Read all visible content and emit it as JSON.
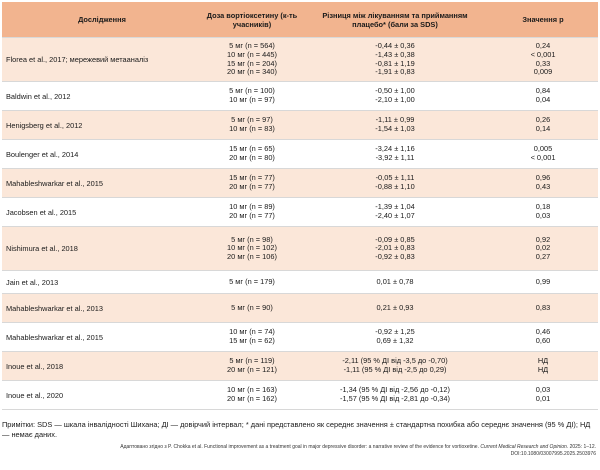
{
  "table": {
    "headers": {
      "study": "Дослідження",
      "dose": "Доза вортіоксетину (к-ть учасників)",
      "difference": "Різниця між лікуванням та прийманням плацебо* (бали за SDS)",
      "pvalue": "Значення p"
    },
    "rows": [
      {
        "study": "Florea et al., 2017; мережевий метааналіз",
        "doses": [
          "5 мг (n = 564)",
          "10 мг (n = 445)",
          "15 мг (n = 204)",
          "20 мг (n = 340)"
        ],
        "diffs": [
          "-0,44 ± 0,36",
          "-1,43 ± 0,38",
          "-0,81 ± 1,19",
          "-1,91 ± 0,83"
        ],
        "pvals": [
          "0,24",
          "< 0,001",
          "0,33",
          "0,009"
        ]
      },
      {
        "study": "Baldwin et al., 2012",
        "doses": [
          "5 мг (n = 100)",
          "10 мг (n = 97)"
        ],
        "diffs": [
          "-0,50 ± 1,00",
          "-2,10 ± 1,00"
        ],
        "pvals": [
          "0,84",
          "0,04"
        ]
      },
      {
        "study": "Henigsberg et al., 2012",
        "doses": [
          "5 мг (n = 97)",
          "10 мг (n = 83)"
        ],
        "diffs": [
          "-1,11 ± 0,99",
          "-1,54 ± 1,03"
        ],
        "pvals": [
          "0,26",
          "0,14"
        ]
      },
      {
        "study": "Boulenger et al., 2014",
        "doses": [
          "15 мг (n = 65)",
          "20 мг (n = 80)"
        ],
        "diffs": [
          "-3,24 ± 1,16",
          "-3,92 ± 1,11"
        ],
        "pvals": [
          "0,005",
          "< 0,001"
        ]
      },
      {
        "study": "Mahableshwarkar et al., 2015",
        "doses": [
          "15 мг (n = 77)",
          "20 мг (n = 77)"
        ],
        "diffs": [
          "-0,05 ± 1,11",
          "-0,88 ± 1,10"
        ],
        "pvals": [
          "0,96",
          "0,43"
        ]
      },
      {
        "study": "Jacobsen et al., 2015",
        "doses": [
          "10 мг (n = 89)",
          "20 мг (n = 77)"
        ],
        "diffs": [
          "-1,39 ± 1,04",
          "-2,40 ± 1,07"
        ],
        "pvals": [
          "0,18",
          "0,03"
        ]
      },
      {
        "study": "Nishimura et al., 2018",
        "doses": [
          "5 мг (n = 98)",
          "10 мг (n = 102)",
          "20 мг (n = 106)"
        ],
        "diffs": [
          "-0,09 ± 0,85",
          "-2,01 ± 0,83",
          "-0,92 ± 0,83"
        ],
        "pvals": [
          "0,92",
          "0,02",
          "0,27"
        ]
      },
      {
        "study": "Jain et al., 2013",
        "doses": [
          "5 мг (n = 179)"
        ],
        "diffs": [
          "0,01 ± 0,78"
        ],
        "pvals": [
          "0,99"
        ]
      },
      {
        "study": "Mahableshwarkar et al., 2013",
        "doses": [
          "5 мг (n = 90)"
        ],
        "diffs": [
          "0,21 ± 0,93"
        ],
        "pvals": [
          "0,83"
        ]
      },
      {
        "study": "Mahableshwarkar et al., 2015",
        "doses": [
          "10 мг (n = 74)",
          "15 мг (n = 62)"
        ],
        "diffs": [
          "-0,92 ± 1,25",
          "0,69 ± 1,32"
        ],
        "pvals": [
          "0,46",
          "0,60"
        ]
      },
      {
        "study": "Inoue et al., 2018",
        "doses": [
          "5 мг (n = 119)",
          "20 мг (n = 121)"
        ],
        "diffs": [
          "-2,11 (95 % ДІ від -3,5 до -0,70)",
          "-1,11 (95 % ДІ від -2,5 до 0,29)"
        ],
        "pvals": [
          "НД",
          "НД"
        ]
      },
      {
        "study": "Inoue et al., 2020",
        "doses": [
          "10 мг (n = 163)",
          "20 мг (n = 162)"
        ],
        "diffs": [
          "-1,34 (95 % ДІ від -2,56 до -0,12)",
          "-1,57 (95 % ДІ від -2,81 до -0,34)"
        ],
        "pvals": [
          "0,03",
          "0,01"
        ]
      }
    ]
  },
  "notes": "Примітки: SDS — шкала інвалідності Шихана; ДІ — довірчий інтервал; * дані представлено як середнє значення ± стандартна похибка або середнє значення (95 % ДІ); НД — немає даних.",
  "source": {
    "prefix": "Адаптовано згідно з P. Chokka et al. Functional improvement as a treatment goal in major depressive disorder: a narrative review of the evidence for vortioxetine.",
    "journal": "Current Medical Research and Opinion.",
    "suffix": "2025: 1–12. DOI:10.1080/03007995.2025.2503976"
  }
}
